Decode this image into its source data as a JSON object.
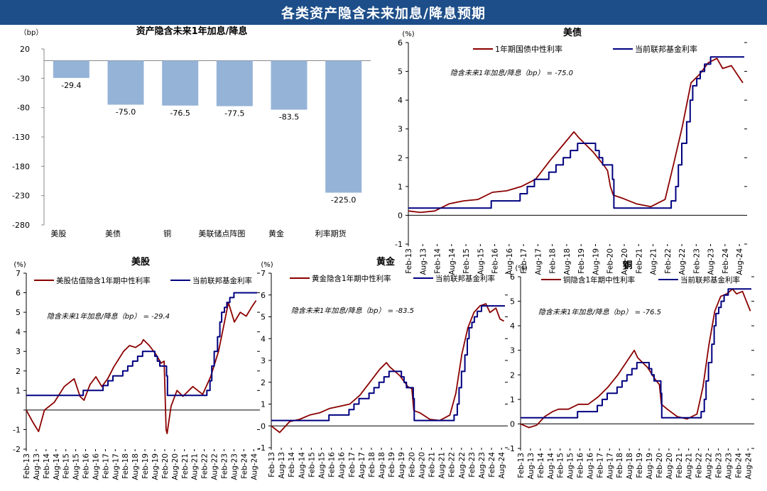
{
  "header": {
    "title": "各类资产隐含未来加息/降息预期"
  },
  "colors": {
    "banner": "#1d4e89",
    "bar": "#95b3d7",
    "implied": "#8b0000",
    "fed": "#000080"
  },
  "chart_data": [
    {
      "id": "bar",
      "type": "bar",
      "title": "资产隐含未来1年加息/降息",
      "ylabel": "（bp）",
      "ylim": [
        -280,
        20
      ],
      "yticks": [
        20,
        -30,
        -80,
        -130,
        -180,
        -230,
        -280
      ],
      "categories": [
        "美股",
        "美债",
        "铜",
        "美联储点阵图",
        "黄金",
        "利率期货"
      ],
      "values": [
        -29.4,
        -75.0,
        -76.5,
        -77.5,
        -83.5,
        -225.0
      ],
      "value_labels": [
        "-29.4",
        "-75.0",
        "-76.5",
        "-77.5",
        "-83.5",
        "-225.0"
      ]
    },
    {
      "id": "ust",
      "type": "line",
      "title": "美债",
      "ylabel": "(%)",
      "ylim": [
        -1,
        6
      ],
      "yticks": [
        -1,
        0,
        1,
        2,
        3,
        4,
        5,
        6
      ],
      "ytick_labels": [
        "-1",
        "0",
        "1",
        "2",
        "3",
        "4",
        "5",
        "6"
      ],
      "xlim": [
        2013.08,
        2024.75
      ],
      "xticks": [
        "Feb-13",
        "Aug-13",
        "Feb-14",
        "Aug-14",
        "Feb-15",
        "Aug-15",
        "Feb-16",
        "Aug-16",
        "Feb-17",
        "Aug-17",
        "Feb-18",
        "Aug-18",
        "Feb-19",
        "Aug-19",
        "Feb-20",
        "Aug-20",
        "Feb-21",
        "Aug-21",
        "Feb-22",
        "Aug-22",
        "Feb-23",
        "Aug-23",
        "Feb-24",
        "Aug-24"
      ],
      "annotation": "隐含未来1年加息/降息（bp） = -75.0",
      "series": [
        {
          "name": "1年期国债中性利率",
          "kind": "implied",
          "x": [
            2013.08,
            2013.5,
            2014.0,
            2014.5,
            2015.0,
            2015.5,
            2016.0,
            2016.5,
            2017.0,
            2017.5,
            2018.0,
            2018.5,
            2018.83,
            2019.0,
            2019.5,
            2019.9,
            2020.0,
            2020.1,
            2020.2,
            2020.5,
            2021.0,
            2021.5,
            2022.0,
            2022.3,
            2022.6,
            2022.9,
            2023.2,
            2023.5,
            2023.8,
            2024.0,
            2024.3,
            2024.5,
            2024.7
          ],
          "y": [
            0.15,
            0.1,
            0.15,
            0.4,
            0.5,
            0.55,
            0.8,
            0.85,
            1.0,
            1.25,
            1.9,
            2.5,
            2.9,
            2.7,
            2.2,
            1.7,
            1.55,
            1.0,
            0.7,
            0.6,
            0.4,
            0.3,
            0.55,
            1.8,
            3.1,
            4.6,
            4.9,
            5.3,
            5.45,
            5.1,
            5.2,
            4.9,
            4.6
          ]
        },
        {
          "name": "当前联邦基金利率",
          "kind": "fed",
          "x": [
            2013.08,
            2015.96,
            2015.96,
            2016.96,
            2016.96,
            2017.21,
            2017.21,
            2017.46,
            2017.46,
            2017.96,
            2017.96,
            2018.21,
            2018.21,
            2018.46,
            2018.46,
            2018.71,
            2018.71,
            2018.96,
            2018.96,
            2019.58,
            2019.58,
            2019.71,
            2019.71,
            2019.83,
            2019.83,
            2020.17,
            2020.17,
            2020.22,
            2020.22,
            2022.21,
            2022.21,
            2022.37,
            2022.37,
            2022.46,
            2022.46,
            2022.58,
            2022.58,
            2022.75,
            2022.75,
            2022.87,
            2022.87,
            2022.96,
            2022.96,
            2023.1,
            2023.1,
            2023.22,
            2023.22,
            2023.37,
            2023.37,
            2023.58,
            2023.58,
            2024.75
          ],
          "y": [
            0.25,
            0.25,
            0.5,
            0.5,
            0.75,
            0.75,
            1.0,
            1.0,
            1.25,
            1.25,
            1.5,
            1.5,
            1.75,
            1.75,
            2.0,
            2.0,
            2.25,
            2.25,
            2.5,
            2.5,
            2.25,
            2.25,
            2.0,
            2.0,
            1.75,
            1.75,
            1.25,
            1.25,
            0.25,
            0.25,
            0.5,
            0.5,
            1.0,
            1.0,
            1.75,
            1.75,
            2.5,
            2.5,
            3.25,
            3.25,
            4.0,
            4.0,
            4.5,
            4.5,
            4.75,
            4.75,
            5.0,
            5.0,
            5.25,
            5.25,
            5.5,
            5.5
          ]
        }
      ]
    },
    {
      "id": "stock",
      "type": "line",
      "title": "美股",
      "ylabel": "(%)",
      "ylim": [
        -2,
        7
      ],
      "yticks": [
        -2,
        -1,
        0,
        1,
        2,
        3,
        4,
        5,
        6,
        7
      ],
      "ytick_labels": [
        "-2",
        "-1",
        "",
        "1",
        "2",
        "3",
        "4",
        "5",
        "6",
        "7"
      ],
      "xlim": [
        2013.08,
        2024.75
      ],
      "xticks": [
        "Feb-13",
        "Aug-13",
        "Feb-14",
        "Aug-14",
        "Feb-15",
        "Aug-15",
        "Feb-16",
        "Aug-16",
        "Feb-17",
        "Aug-17",
        "Feb-18",
        "Aug-18",
        "Feb-19",
        "Aug-19",
        "Feb-20",
        "Aug-20",
        "Feb-21",
        "Aug-21",
        "Feb-22",
        "Aug-22",
        "Feb-23",
        "Aug-23",
        "Feb-24",
        "Aug-24"
      ],
      "annotation": "隐含未来1年加息/降息（bp） = -29.4",
      "series": [
        {
          "name": "美股估值隐含1年期中性利率",
          "kind": "implied",
          "x": [
            2013.08,
            2013.4,
            2013.7,
            2014.0,
            2014.5,
            2015.0,
            2015.5,
            2015.8,
            2016.0,
            2016.3,
            2016.6,
            2016.9,
            2017.2,
            2017.5,
            2018.0,
            2018.3,
            2018.6,
            2018.9,
            2019.0,
            2019.3,
            2019.6,
            2019.9,
            2020.05,
            2020.15,
            2020.2,
            2020.4,
            2020.7,
            2021.0,
            2021.5,
            2022.0,
            2022.4,
            2022.8,
            2023.0,
            2023.3,
            2023.6,
            2023.9,
            2024.2,
            2024.5,
            2024.7
          ],
          "y": [
            0.0,
            -0.6,
            -1.1,
            0.0,
            0.4,
            1.2,
            1.6,
            0.7,
            0.5,
            1.3,
            1.7,
            1.2,
            1.6,
            2.2,
            3.0,
            3.3,
            3.2,
            3.4,
            3.6,
            3.3,
            2.9,
            2.4,
            2.5,
            -1.0,
            -1.2,
            0.2,
            1.0,
            0.7,
            1.2,
            0.8,
            1.7,
            3.0,
            4.0,
            5.5,
            4.5,
            5.0,
            4.8,
            5.3,
            5.6
          ]
        },
        {
          "name": "当前联邦基金利率",
          "kind": "fed",
          "x": [
            2013.08,
            2015.96,
            2015.96,
            2016.96,
            2016.96,
            2017.21,
            2017.21,
            2017.46,
            2017.46,
            2017.96,
            2017.96,
            2018.21,
            2018.21,
            2018.46,
            2018.46,
            2018.71,
            2018.71,
            2018.96,
            2018.96,
            2019.58,
            2019.58,
            2019.71,
            2019.71,
            2019.83,
            2019.83,
            2020.17,
            2020.17,
            2020.22,
            2020.22,
            2022.21,
            2022.21,
            2022.37,
            2022.37,
            2022.46,
            2022.46,
            2022.58,
            2022.58,
            2022.75,
            2022.75,
            2022.87,
            2022.87,
            2022.96,
            2022.96,
            2023.1,
            2023.1,
            2023.22,
            2023.22,
            2023.37,
            2023.37,
            2023.58,
            2023.58,
            2024.75
          ],
          "y": [
            0.75,
            0.75,
            1.0,
            1.0,
            1.25,
            1.25,
            1.5,
            1.5,
            1.75,
            1.75,
            2.0,
            2.0,
            2.25,
            2.25,
            2.5,
            2.5,
            2.75,
            2.75,
            3.0,
            3.0,
            2.75,
            2.75,
            2.5,
            2.5,
            2.25,
            2.25,
            1.75,
            1.75,
            0.75,
            0.75,
            1.0,
            1.0,
            1.5,
            1.5,
            2.25,
            2.25,
            3.0,
            3.0,
            3.75,
            3.75,
            4.5,
            4.5,
            5.0,
            5.0,
            5.25,
            5.25,
            5.5,
            5.5,
            5.75,
            5.75,
            6.0,
            6.0
          ]
        }
      ]
    },
    {
      "id": "gold",
      "type": "line",
      "title": "黄金",
      "ylabel": "(%)",
      "ylim": [
        -1,
        7
      ],
      "yticks": [
        -1,
        0,
        1,
        2,
        3,
        4,
        5,
        6,
        7
      ],
      "ytick_labels": [
        "-1",
        "0",
        "1",
        "2",
        "3",
        "4",
        "5",
        "6",
        "7"
      ],
      "xlim": [
        2013.08,
        2024.75
      ],
      "xticks": [
        "Feb-13",
        "Aug-13",
        "Feb-14",
        "Aug-14",
        "Feb-15",
        "Aug-15",
        "Feb-16",
        "Aug-16",
        "Feb-17",
        "Aug-17",
        "Feb-18",
        "Aug-18",
        "Feb-19",
        "Aug-19",
        "Feb-20",
        "Aug-20",
        "Feb-21",
        "Aug-21",
        "Feb-22",
        "Aug-22",
        "Feb-23",
        "Aug-23",
        "Feb-24",
        "Aug-24"
      ],
      "annotation": "隐含未来1年加息/降息（bp） = -83.5",
      "series": [
        {
          "name": "黄金隐含1年期中性利率",
          "kind": "implied",
          "x": [
            2013.08,
            2013.5,
            2014.0,
            2014.5,
            2015.0,
            2015.5,
            2016.0,
            2016.5,
            2017.0,
            2017.5,
            2018.0,
            2018.5,
            2018.83,
            2019.0,
            2019.5,
            2019.9,
            2020.1,
            2020.2,
            2020.5,
            2021.0,
            2021.5,
            2022.0,
            2022.3,
            2022.6,
            2022.9,
            2023.2,
            2023.5,
            2023.8,
            2024.0,
            2024.3,
            2024.5,
            2024.7
          ],
          "y": [
            0.0,
            -0.3,
            0.2,
            0.3,
            0.5,
            0.6,
            0.8,
            0.9,
            1.0,
            1.4,
            2.0,
            2.6,
            2.9,
            2.7,
            2.3,
            1.8,
            1.7,
            0.7,
            0.6,
            0.3,
            0.25,
            0.5,
            1.5,
            3.3,
            4.5,
            5.2,
            5.5,
            5.6,
            5.2,
            5.4,
            4.9,
            4.8
          ]
        },
        {
          "name": "当前联邦基金利率",
          "kind": "fed",
          "x": [
            2013.08,
            2015.96,
            2015.96,
            2016.96,
            2016.96,
            2017.21,
            2017.21,
            2017.46,
            2017.46,
            2017.96,
            2017.96,
            2018.21,
            2018.21,
            2018.46,
            2018.46,
            2018.71,
            2018.71,
            2018.96,
            2018.96,
            2019.58,
            2019.58,
            2019.71,
            2019.71,
            2019.83,
            2019.83,
            2020.17,
            2020.17,
            2020.22,
            2020.22,
            2022.21,
            2022.21,
            2022.37,
            2022.37,
            2022.46,
            2022.46,
            2022.58,
            2022.58,
            2022.75,
            2022.75,
            2022.87,
            2022.87,
            2022.96,
            2022.96,
            2023.1,
            2023.1,
            2023.22,
            2023.22,
            2023.37,
            2023.37,
            2023.58,
            2023.58,
            2024.75
          ],
          "y": [
            0.25,
            0.25,
            0.5,
            0.5,
            0.75,
            0.75,
            1.0,
            1.0,
            1.25,
            1.25,
            1.5,
            1.5,
            1.75,
            1.75,
            2.0,
            2.0,
            2.25,
            2.25,
            2.5,
            2.5,
            2.25,
            2.25,
            2.0,
            2.0,
            1.75,
            1.75,
            1.25,
            1.25,
            0.25,
            0.25,
            0.5,
            0.5,
            1.0,
            1.0,
            1.75,
            1.75,
            2.5,
            2.5,
            3.25,
            3.25,
            4.0,
            4.0,
            4.5,
            4.5,
            4.75,
            4.75,
            5.0,
            5.0,
            5.25,
            5.25,
            5.5,
            5.5
          ]
        }
      ]
    },
    {
      "id": "copper",
      "type": "line",
      "title": "铜",
      "ylabel": "(%)",
      "ylim": [
        -1,
        6
      ],
      "yticks": [
        -1,
        0,
        1,
        2,
        3,
        4,
        5,
        6
      ],
      "ytick_labels": [
        "-1",
        "0",
        "1",
        "2",
        "3",
        "4",
        "5",
        "6"
      ],
      "xlim": [
        2013.08,
        2024.75
      ],
      "xticks": [
        "Feb-13",
        "Aug-13",
        "Feb-14",
        "Aug-14",
        "Feb-15",
        "Aug-15",
        "Feb-16",
        "Aug-16",
        "Feb-17",
        "Aug-17",
        "Feb-18",
        "Aug-18",
        "Feb-19",
        "Aug-19",
        "Feb-20",
        "Aug-20",
        "Feb-21",
        "Aug-21",
        "Feb-22",
        "Aug-22",
        "Feb-23",
        "Aug-23",
        "Feb-24",
        "Aug-24"
      ],
      "annotation": "隐含未来1年加息/降息（bp） = -76.5",
      "series": [
        {
          "name": "铜隐含1年期中性利率",
          "kind": "implied",
          "x": [
            2013.08,
            2013.5,
            2013.9,
            2014.3,
            2014.7,
            2015.0,
            2015.5,
            2016.0,
            2016.5,
            2017.0,
            2017.5,
            2018.0,
            2018.5,
            2018.83,
            2019.0,
            2019.5,
            2019.9,
            2020.1,
            2020.2,
            2020.5,
            2021.0,
            2021.5,
            2022.0,
            2022.3,
            2022.6,
            2022.9,
            2023.2,
            2023.5,
            2023.8,
            2024.0,
            2024.3,
            2024.5,
            2024.7
          ],
          "y": [
            0.0,
            -0.15,
            -0.05,
            0.3,
            0.5,
            0.6,
            0.6,
            0.8,
            0.8,
            1.1,
            1.5,
            2.0,
            2.6,
            3.0,
            2.7,
            2.3,
            1.8,
            1.6,
            0.8,
            0.6,
            0.3,
            0.2,
            0.4,
            1.5,
            3.2,
            4.6,
            5.2,
            5.3,
            5.5,
            5.3,
            5.4,
            5.0,
            4.6
          ]
        },
        {
          "name": "当前联邦基金利率",
          "kind": "fed",
          "x": [
            2013.08,
            2015.96,
            2015.96,
            2016.96,
            2016.96,
            2017.21,
            2017.21,
            2017.46,
            2017.46,
            2017.96,
            2017.96,
            2018.21,
            2018.21,
            2018.46,
            2018.46,
            2018.71,
            2018.71,
            2018.96,
            2018.96,
            2019.58,
            2019.58,
            2019.71,
            2019.71,
            2019.83,
            2019.83,
            2020.17,
            2020.17,
            2020.22,
            2020.22,
            2022.21,
            2022.21,
            2022.37,
            2022.37,
            2022.46,
            2022.46,
            2022.58,
            2022.58,
            2022.75,
            2022.75,
            2022.87,
            2022.87,
            2022.96,
            2022.96,
            2023.1,
            2023.1,
            2023.22,
            2023.22,
            2023.37,
            2023.37,
            2023.58,
            2023.58,
            2024.75
          ],
          "y": [
            0.25,
            0.25,
            0.5,
            0.5,
            0.75,
            0.75,
            1.0,
            1.0,
            1.25,
            1.25,
            1.5,
            1.5,
            1.75,
            1.75,
            2.0,
            2.0,
            2.25,
            2.25,
            2.5,
            2.5,
            2.25,
            2.25,
            2.0,
            2.0,
            1.75,
            1.75,
            1.25,
            1.25,
            0.25,
            0.25,
            0.5,
            0.5,
            1.0,
            1.0,
            1.75,
            1.75,
            2.5,
            2.5,
            3.25,
            3.25,
            4.0,
            4.0,
            4.5,
            4.5,
            4.75,
            4.75,
            5.0,
            5.0,
            5.25,
            5.25,
            5.5,
            5.5
          ]
        }
      ]
    }
  ]
}
